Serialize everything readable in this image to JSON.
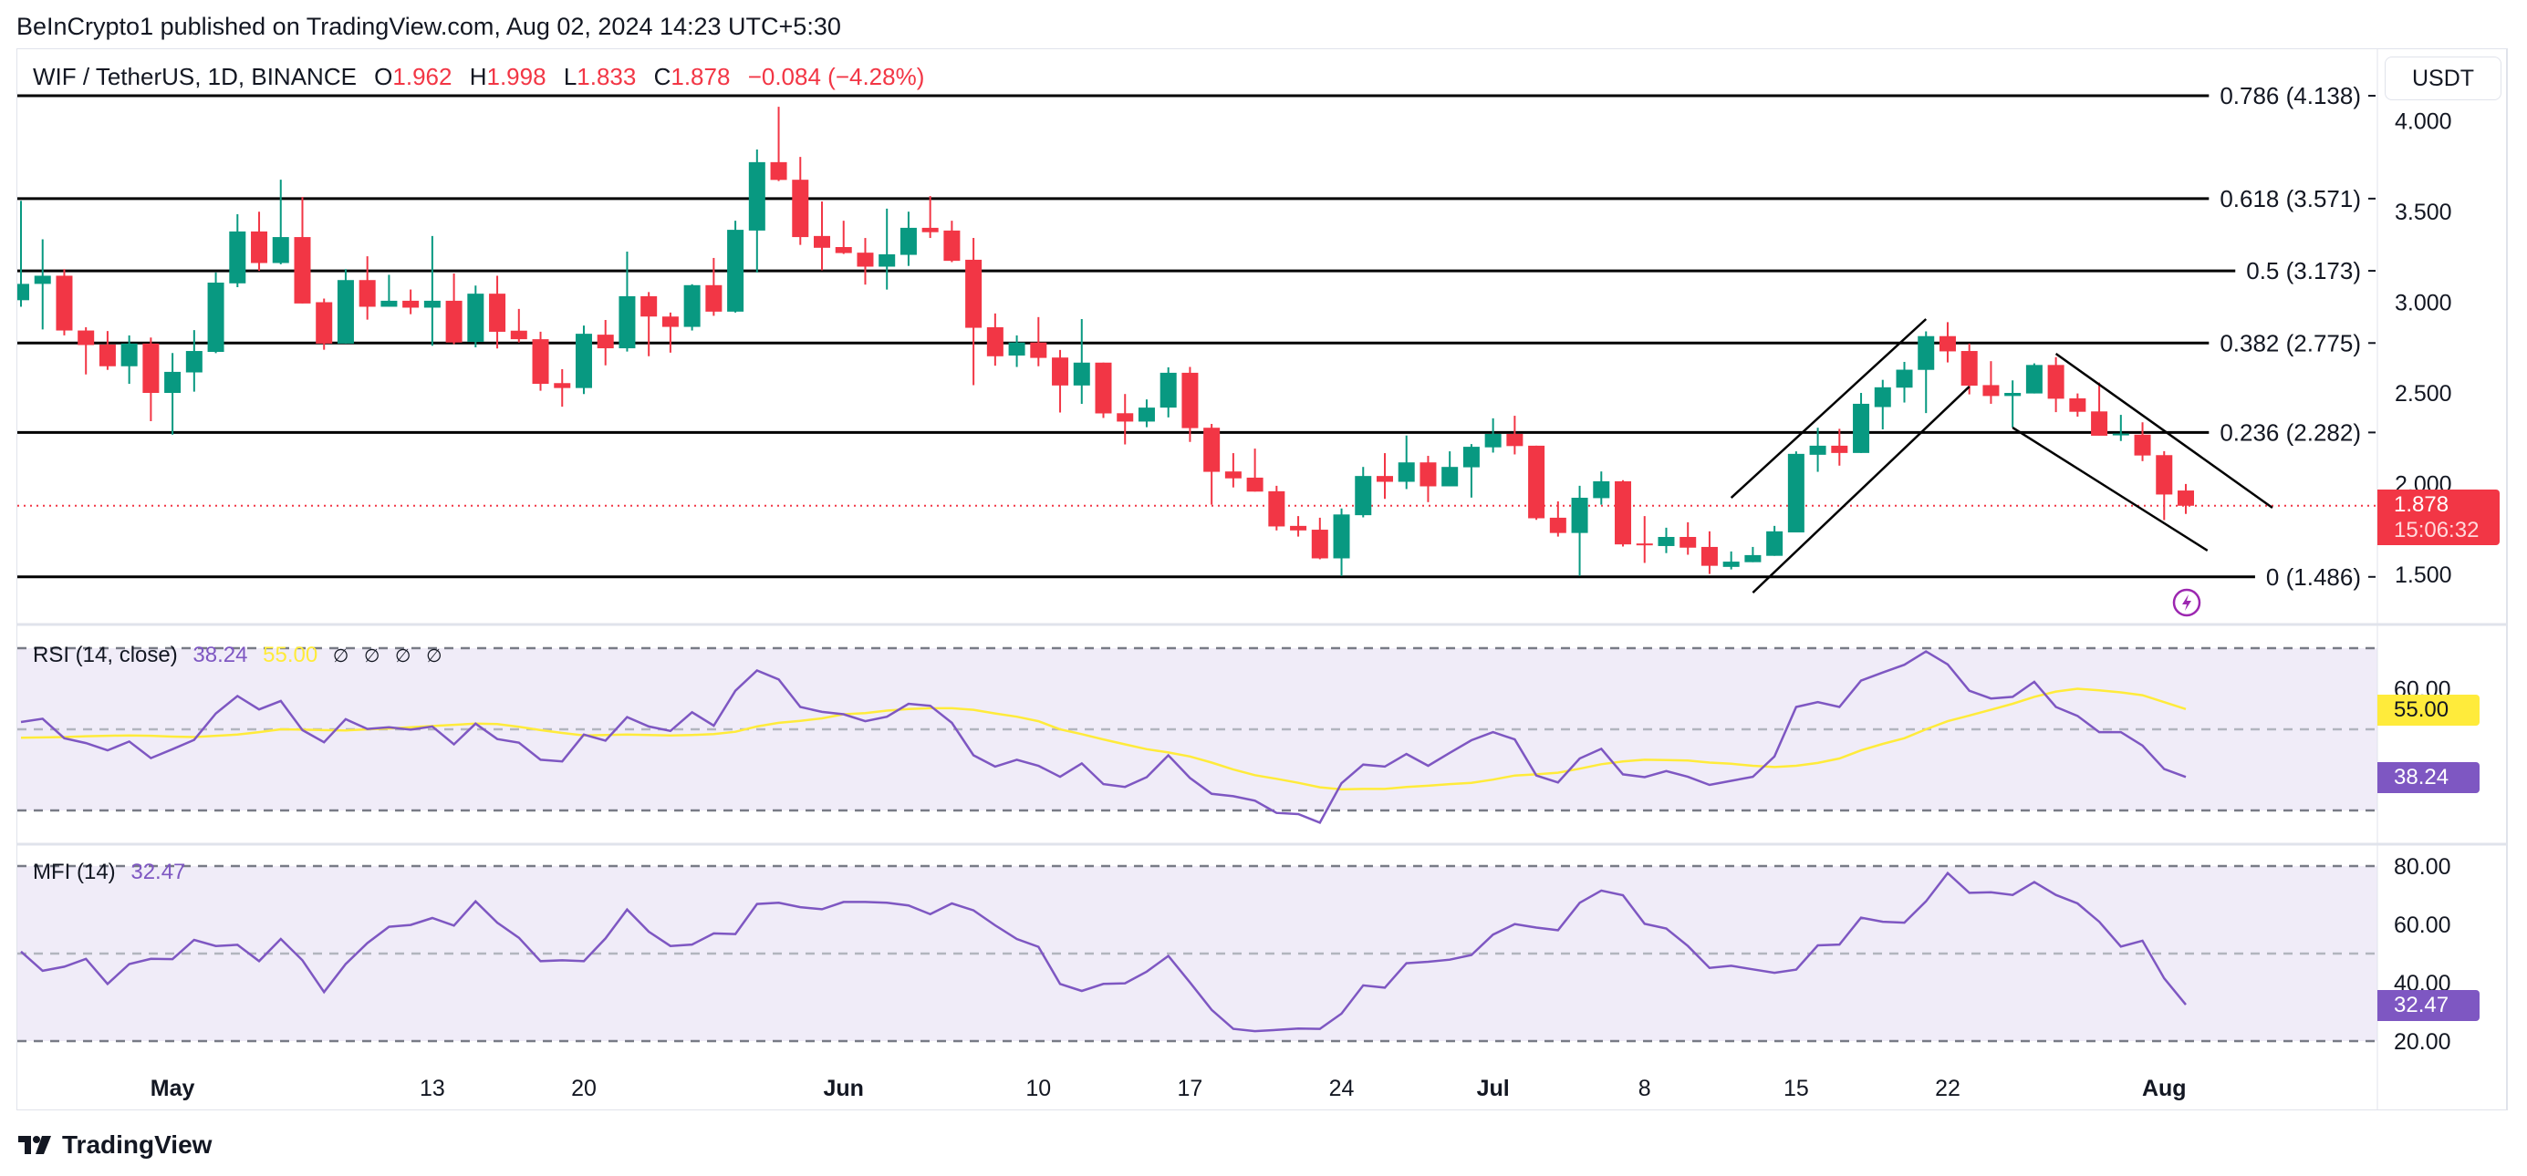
{
  "header": {
    "published": "BeInCrypto1 published on TradingView.com, Aug 02, 2024 14:23 UTC+5:30"
  },
  "legend": {
    "symbol": "WIF / TetherUS, 1D, BINANCE",
    "o_label": "O",
    "o": "1.962",
    "h_label": "H",
    "h": "1.998",
    "l_label": "L",
    "l": "1.833",
    "c_label": "C",
    "c": "1.878",
    "change": "−0.084 (−4.28%)"
  },
  "currency_button": "USDT",
  "price_badge": {
    "price": "1.878",
    "countdown": "15:06:32"
  },
  "footer": {
    "brand": "TradingView"
  },
  "colors": {
    "up": "#089981",
    "down": "#f23645",
    "rsi": "#7e57c2",
    "rsi_ma": "#ffeb3b",
    "mfi": "#7e57c2",
    "alert_icon": "#9c27b0"
  },
  "icons": {
    "alert": "lightning-icon",
    "brand": "tradingview-logo-icon"
  },
  "chart_data": {
    "type": "candlestick",
    "price_axis": {
      "ticks": [
        "4.000",
        "3.500",
        "3.000",
        "2.500",
        "2.000",
        "1.500"
      ],
      "tick_values": [
        4.0,
        3.5,
        3.0,
        2.5,
        2.0,
        1.5
      ],
      "ylim": [
        1.35,
        4.2
      ]
    },
    "time_axis": [
      {
        "date": "2024-05-01",
        "label": "May",
        "month": true
      },
      {
        "date": "2024-05-13",
        "label": "13"
      },
      {
        "date": "2024-05-20",
        "label": "20"
      },
      {
        "date": "2024-06-01",
        "label": "Jun",
        "month": true
      },
      {
        "date": "2024-06-10",
        "label": "10"
      },
      {
        "date": "2024-06-17",
        "label": "17"
      },
      {
        "date": "2024-06-24",
        "label": "24"
      },
      {
        "date": "2024-07-01",
        "label": "Jul",
        "month": true
      },
      {
        "date": "2024-07-08",
        "label": "8"
      },
      {
        "date": "2024-07-15",
        "label": "15"
      },
      {
        "date": "2024-07-22",
        "label": "22"
      },
      {
        "date": "2024-08-01",
        "label": "Aug",
        "month": true
      }
    ],
    "last_price": 1.878,
    "fib_levels": [
      {
        "label": "0.786 (4.138)",
        "price": 4.138
      },
      {
        "label": "0.618 (3.571)",
        "price": 3.571
      },
      {
        "label": "0.5 (3.173)",
        "price": 3.173
      },
      {
        "label": "0.382 (2.775)",
        "price": 2.775
      },
      {
        "label": "0.236 (2.282)",
        "price": 2.282
      },
      {
        "label": "0 (1.486)",
        "price": 1.486
      }
    ],
    "trendlines": [
      {
        "from": {
          "date": "2024-07-12",
          "price": 1.922
        },
        "to": {
          "date": "2024-07-21",
          "price": 2.907
        }
      },
      {
        "from": {
          "date": "2024-07-13",
          "price": 1.399
        },
        "to": {
          "date": "2024-07-23",
          "price": 2.535
        }
      },
      {
        "from": {
          "date": "2024-07-27",
          "price": 2.716
        },
        "to": {
          "date": "2024-08-06",
          "price": 1.867
        }
      },
      {
        "from": {
          "date": "2024-07-25",
          "price": 2.309
        },
        "to": {
          "date": "2024-08-03",
          "price": 1.631
        }
      }
    ],
    "candles_columns": [
      "date",
      "open",
      "high",
      "low",
      "close"
    ],
    "candles": [
      [
        "2024-04-24",
        3.011,
        3.559,
        2.975,
        3.101
      ],
      [
        "2024-04-25",
        3.101,
        3.347,
        2.85,
        3.146
      ],
      [
        "2024-04-26",
        3.146,
        3.182,
        2.817,
        2.844
      ],
      [
        "2024-04-27",
        2.844,
        2.862,
        2.602,
        2.764
      ],
      [
        "2024-04-28",
        2.767,
        2.841,
        2.627,
        2.647
      ],
      [
        "2024-04-29",
        2.647,
        2.817,
        2.55,
        2.772
      ],
      [
        "2024-04-30",
        2.772,
        2.805,
        2.344,
        2.5
      ],
      [
        "2024-05-01",
        2.5,
        2.72,
        2.27,
        2.616
      ],
      [
        "2024-05-02",
        2.613,
        2.846,
        2.507,
        2.731
      ],
      [
        "2024-05-03",
        2.726,
        3.164,
        2.719,
        3.108
      ],
      [
        "2024-05-04",
        3.104,
        3.485,
        3.083,
        3.39
      ],
      [
        "2024-05-05",
        3.39,
        3.499,
        3.173,
        3.216
      ],
      [
        "2024-05-06",
        3.216,
        3.675,
        3.209,
        3.359
      ],
      [
        "2024-05-07",
        3.359,
        3.58,
        2.993,
        2.993
      ],
      [
        "2024-05-08",
        3.0,
        3.02,
        2.738,
        2.772
      ],
      [
        "2024-05-09",
        2.772,
        3.182,
        2.772,
        3.122
      ],
      [
        "2024-05-10",
        3.122,
        3.253,
        2.904,
        2.975
      ],
      [
        "2024-05-11",
        2.975,
        3.151,
        2.975,
        3.008
      ],
      [
        "2024-05-12",
        3.008,
        3.07,
        2.934,
        2.97
      ],
      [
        "2024-05-13",
        2.97,
        3.365,
        2.76,
        3.008
      ],
      [
        "2024-05-14",
        3.008,
        3.158,
        2.769,
        2.778
      ],
      [
        "2024-05-15",
        2.781,
        3.092,
        2.751,
        3.047
      ],
      [
        "2024-05-16",
        3.047,
        3.146,
        2.745,
        2.837
      ],
      [
        "2024-05-17",
        2.843,
        2.963,
        2.778,
        2.796
      ],
      [
        "2024-05-18",
        2.796,
        2.837,
        2.512,
        2.55
      ],
      [
        "2024-05-19",
        2.554,
        2.631,
        2.424,
        2.527
      ],
      [
        "2024-05-20",
        2.527,
        2.871,
        2.494,
        2.826
      ],
      [
        "2024-05-21",
        2.821,
        2.902,
        2.652,
        2.746
      ],
      [
        "2024-05-22",
        2.746,
        3.279,
        2.728,
        3.033
      ],
      [
        "2024-05-23",
        3.033,
        3.056,
        2.702,
        2.921
      ],
      [
        "2024-05-24",
        2.921,
        2.943,
        2.722,
        2.864
      ],
      [
        "2024-05-25",
        2.864,
        3.099,
        2.844,
        3.094
      ],
      [
        "2024-05-26",
        3.094,
        3.244,
        2.925,
        2.948
      ],
      [
        "2024-05-27",
        2.948,
        3.449,
        2.943,
        3.399
      ],
      [
        "2024-05-28",
        3.395,
        3.842,
        3.164,
        3.772
      ],
      [
        "2024-05-29",
        3.772,
        4.077,
        3.668,
        3.674
      ],
      [
        "2024-05-30",
        3.675,
        3.801,
        3.316,
        3.359
      ],
      [
        "2024-05-31",
        3.365,
        3.555,
        3.176,
        3.3
      ],
      [
        "2024-06-01",
        3.304,
        3.449,
        3.266,
        3.271
      ],
      [
        "2024-06-02",
        3.273,
        3.354,
        3.097,
        3.196
      ],
      [
        "2024-06-03",
        3.196,
        3.516,
        3.07,
        3.264
      ],
      [
        "2024-06-04",
        3.261,
        3.499,
        3.2,
        3.41
      ],
      [
        "2024-06-05",
        3.41,
        3.585,
        3.354,
        3.386
      ],
      [
        "2024-06-06",
        3.395,
        3.449,
        3.221,
        3.228
      ],
      [
        "2024-06-07",
        3.234,
        3.354,
        2.543,
        2.859
      ],
      [
        "2024-06-08",
        2.862,
        2.938,
        2.65,
        2.702
      ],
      [
        "2024-06-09",
        2.706,
        2.817,
        2.643,
        2.778
      ],
      [
        "2024-06-10",
        2.778,
        2.918,
        2.647,
        2.693
      ],
      [
        "2024-06-11",
        2.695,
        2.737,
        2.392,
        2.541
      ],
      [
        "2024-06-12",
        2.541,
        2.907,
        2.44,
        2.667
      ],
      [
        "2024-06-13",
        2.667,
        2.667,
        2.362,
        2.387
      ],
      [
        "2024-06-14",
        2.388,
        2.494,
        2.216,
        2.342
      ],
      [
        "2024-06-15",
        2.342,
        2.464,
        2.311,
        2.419
      ],
      [
        "2024-06-16",
        2.419,
        2.641,
        2.365,
        2.611
      ],
      [
        "2024-06-17",
        2.611,
        2.643,
        2.23,
        2.306
      ],
      [
        "2024-06-18",
        2.308,
        2.329,
        1.884,
        2.065
      ],
      [
        "2024-06-19",
        2.067,
        2.168,
        1.979,
        2.029
      ],
      [
        "2024-06-20",
        2.033,
        2.193,
        1.956,
        1.956
      ],
      [
        "2024-06-21",
        1.958,
        1.988,
        1.742,
        1.764
      ],
      [
        "2024-06-22",
        1.767,
        1.821,
        1.708,
        1.742
      ],
      [
        "2024-06-23",
        1.746,
        1.812,
        1.583,
        1.588
      ],
      [
        "2024-06-24",
        1.588,
        1.863,
        1.491,
        1.83
      ],
      [
        "2024-06-25",
        1.826,
        2.092,
        1.814,
        2.042
      ],
      [
        "2024-06-26",
        2.042,
        2.168,
        1.916,
        2.01
      ],
      [
        "2024-06-27",
        2.01,
        2.265,
        1.97,
        2.117
      ],
      [
        "2024-06-28",
        2.117,
        2.153,
        1.898,
        1.985
      ],
      [
        "2024-06-29",
        1.985,
        2.178,
        1.985,
        2.092
      ],
      [
        "2024-06-30",
        2.09,
        2.218,
        1.923,
        2.203
      ],
      [
        "2024-07-01",
        2.2,
        2.36,
        2.171,
        2.274
      ],
      [
        "2024-07-02",
        2.274,
        2.374,
        2.161,
        2.207
      ],
      [
        "2024-07-03",
        2.209,
        2.209,
        1.8,
        1.809
      ],
      [
        "2024-07-04",
        1.812,
        1.902,
        1.708,
        1.728
      ],
      [
        "2024-07-05",
        1.728,
        1.988,
        1.491,
        1.922
      ],
      [
        "2024-07-06",
        1.92,
        2.067,
        1.884,
        2.013
      ],
      [
        "2024-07-07",
        2.013,
        2.019,
        1.653,
        1.665
      ],
      [
        "2024-07-08",
        1.67,
        1.821,
        1.563,
        1.66
      ],
      [
        "2024-07-09",
        1.656,
        1.757,
        1.617,
        1.706
      ],
      [
        "2024-07-10",
        1.706,
        1.787,
        1.608,
        1.647
      ],
      [
        "2024-07-11",
        1.651,
        1.737,
        1.502,
        1.547
      ],
      [
        "2024-07-12",
        1.541,
        1.626,
        1.527,
        1.57
      ],
      [
        "2024-07-13",
        1.567,
        1.651,
        1.567,
        1.606
      ],
      [
        "2024-07-14",
        1.602,
        1.767,
        1.602,
        1.737
      ],
      [
        "2024-07-15",
        1.731,
        2.178,
        1.731,
        2.164
      ],
      [
        "2024-07-16",
        2.159,
        2.308,
        2.065,
        2.209
      ],
      [
        "2024-07-17",
        2.209,
        2.302,
        2.099,
        2.169
      ],
      [
        "2024-07-18",
        2.169,
        2.5,
        2.169,
        2.44
      ],
      [
        "2024-07-19",
        2.422,
        2.572,
        2.299,
        2.531
      ],
      [
        "2024-07-20",
        2.529,
        2.671,
        2.447,
        2.628
      ],
      [
        "2024-07-21",
        2.627,
        2.839,
        2.389,
        2.813
      ],
      [
        "2024-07-22",
        2.813,
        2.89,
        2.668,
        2.729
      ],
      [
        "2024-07-23",
        2.731,
        2.772,
        2.492,
        2.54
      ],
      [
        "2024-07-24",
        2.543,
        2.675,
        2.44,
        2.483
      ],
      [
        "2024-07-25",
        2.483,
        2.569,
        2.309,
        2.5
      ],
      [
        "2024-07-26",
        2.497,
        2.663,
        2.497,
        2.654
      ],
      [
        "2024-07-27",
        2.654,
        2.697,
        2.394,
        2.468
      ],
      [
        "2024-07-28",
        2.47,
        2.497,
        2.369,
        2.396
      ],
      [
        "2024-07-29",
        2.398,
        2.557,
        2.264,
        2.264
      ],
      [
        "2024-07-30",
        2.266,
        2.379,
        2.235,
        2.276
      ],
      [
        "2024-07-31",
        2.27,
        2.338,
        2.124,
        2.155
      ],
      [
        "2024-08-01",
        2.157,
        2.179,
        1.799,
        1.94
      ],
      [
        "2024-08-02",
        1.962,
        1.998,
        1.833,
        1.878
      ]
    ],
    "rsi": {
      "title": "RSI (14, close)",
      "value": "38.24",
      "ma_value": "55.00",
      "na_values": [
        "∅",
        "∅",
        "∅",
        "∅"
      ],
      "axis_ticks": [
        "60.00"
      ],
      "tick_values": [
        60
      ],
      "bands": [
        70,
        50,
        30
      ],
      "ylim": [
        20,
        72
      ],
      "values": [
        51.8,
        52.6,
        47.8,
        46.6,
        44.8,
        47.0,
        42.9,
        45.1,
        47.4,
        53.9,
        58.2,
        54.9,
        57.0,
        49.8,
        46.8,
        52.5,
        50.1,
        50.5,
        49.9,
        50.7,
        46.3,
        51.4,
        47.6,
        46.7,
        42.5,
        42.1,
        48.7,
        47.2,
        53.0,
        50.7,
        49.6,
        54.2,
        50.9,
        59.5,
        64.5,
        62.3,
        55.5,
        54.3,
        53.7,
        52.0,
        53.1,
        56.3,
        55.8,
        51.6,
        43.6,
        40.8,
        42.5,
        41.0,
        38.3,
        41.6,
        36.5,
        35.8,
        38.2,
        43.6,
        38.0,
        34.1,
        33.5,
        32.4,
        29.4,
        29.1,
        27.0,
        36.7,
        41.3,
        40.8,
        43.9,
        41.0,
        44.2,
        47.3,
        49.3,
        47.5,
        38.6,
        36.9,
        42.8,
        45.2,
        38.9,
        38.2,
        39.7,
        38.3,
        36.3,
        37.3,
        38.3,
        43.3,
        55.5,
        56.7,
        55.5,
        62.0,
        64.0,
        65.9,
        69.2,
        66.0,
        59.5,
        57.6,
        58.0,
        61.7,
        55.5,
        53.3,
        49.3,
        49.3,
        46.0,
        40.2,
        38.24
      ],
      "ma": [
        47.9,
        48.0,
        48.1,
        48.3,
        48.4,
        48.5,
        48.4,
        48.2,
        48.1,
        48.4,
        48.7,
        49.3,
        50.0,
        49.9,
        49.8,
        49.7,
        50.0,
        50.2,
        50.5,
        50.8,
        51.1,
        51.4,
        51.3,
        50.6,
        49.8,
        49.1,
        48.5,
        48.6,
        48.7,
        48.6,
        48.5,
        48.6,
        48.8,
        49.4,
        50.7,
        51.6,
        52.1,
        52.7,
        53.7,
        54.0,
        54.6,
        55.0,
        55.2,
        55.2,
        54.8,
        53.9,
        53.1,
        52.0,
        50.0,
        48.8,
        47.5,
        46.3,
        45.1,
        44.3,
        43.3,
        41.8,
        40.1,
        38.7,
        37.8,
        36.8,
        35.7,
        35.2,
        35.3,
        35.3,
        35.8,
        36.1,
        36.5,
        36.8,
        37.6,
        38.6,
        38.9,
        39.3,
        40.3,
        41.4,
        42.1,
        42.5,
        42.4,
        42.3,
        41.8,
        41.5,
        41.0,
        40.7,
        41.0,
        41.7,
        42.8,
        44.8,
        46.4,
        47.8,
        50.0,
        52.0,
        53.4,
        54.8,
        56.3,
        58.0,
        59.3,
        60.0,
        59.6,
        59.1,
        58.4,
        56.7,
        55.0
      ]
    },
    "mfi": {
      "title": "MFI (14)",
      "value": "32.47",
      "axis_ticks": [
        "80.00",
        "60.00",
        "40.00",
        "20.00"
      ],
      "tick_values": [
        80,
        60,
        40,
        20
      ],
      "bands": [
        80,
        50,
        20
      ],
      "ylim": [
        17,
        90
      ],
      "values": [
        50.7,
        44.1,
        45.5,
        48.2,
        39.6,
        46.4,
        48.2,
        48.1,
        54.7,
        52.6,
        53.0,
        47.4,
        55.0,
        47.7,
        36.8,
        46.4,
        53.6,
        59.2,
        59.8,
        62.2,
        59.6,
        67.9,
        60.6,
        55.4,
        47.4,
        47.7,
        47.4,
        55.2,
        65.1,
        57.5,
        52.6,
        53.1,
        56.9,
        56.7,
        67.0,
        67.4,
        65.9,
        65.2,
        67.7,
        67.7,
        67.4,
        66.5,
        63.5,
        67.2,
        64.8,
        59.7,
        55.0,
        52.3,
        39.6,
        37.2,
        39.6,
        39.8,
        43.8,
        49.2,
        40.1,
        30.7,
        24.2,
        23.4,
        23.8,
        24.3,
        24.2,
        29.4,
        39.1,
        38.3,
        46.7,
        47.2,
        47.9,
        49.5,
        56.5,
        60.1,
        58.9,
        58.0,
        67.4,
        71.6,
        70.0,
        60.2,
        58.6,
        52.6,
        45.1,
        45.8,
        44.6,
        43.4,
        44.5,
        52.8,
        53.1,
        62.3,
        60.9,
        60.6,
        67.9,
        77.6,
        70.8,
        71.0,
        70.1,
        74.5,
        70.1,
        67.2,
        60.9,
        52.4,
        54.4,
        41.5,
        32.47
      ]
    }
  }
}
